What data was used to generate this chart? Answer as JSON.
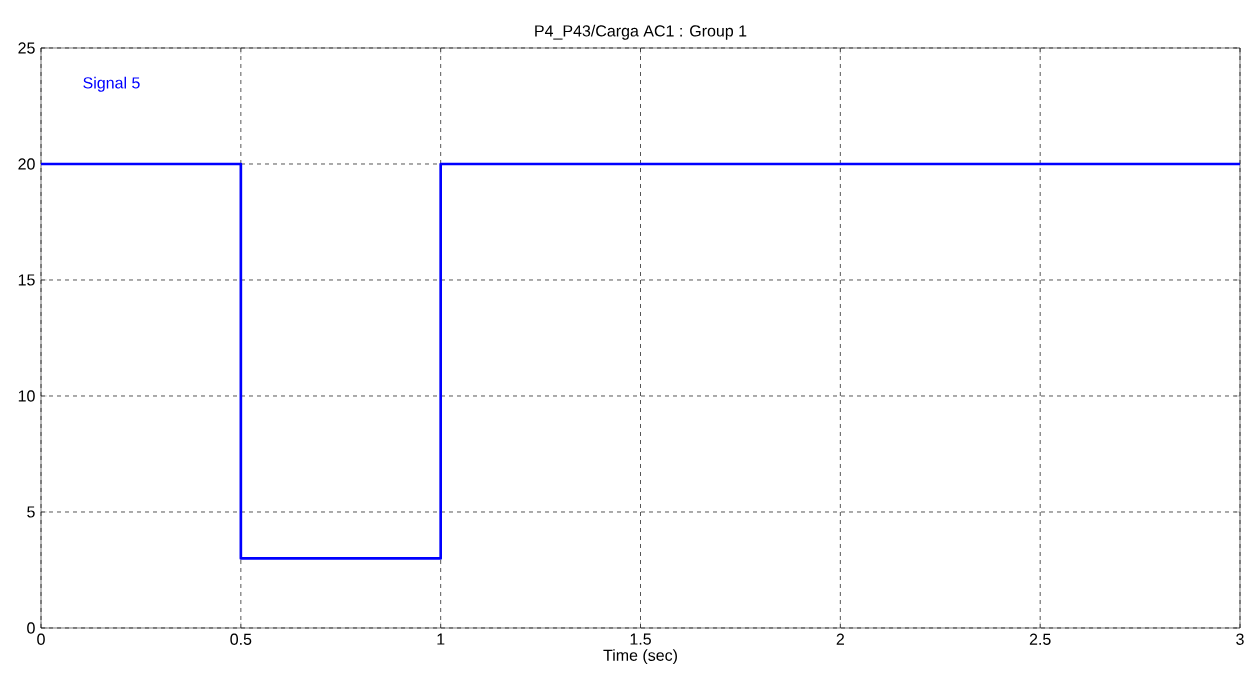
{
  "chart_data": {
    "type": "step",
    "title": "P4_P43/Carga AC1 : Group 1",
    "xlabel": "Time (sec)",
    "x": [
      0,
      0.5,
      1,
      3
    ],
    "series": [
      {
        "name": "Signal 5",
        "color": "#0000ff",
        "values": [
          20,
          3,
          20,
          20
        ]
      }
    ],
    "xlim": [
      0,
      3
    ],
    "xticks": [
      0,
      0.5,
      1,
      1.5,
      2,
      2.5,
      3
    ],
    "ylim": [
      0,
      25
    ],
    "yticks": [
      0,
      5,
      10,
      15,
      20,
      25
    ],
    "grid": true,
    "legend": "top left",
    "line_style": "solid",
    "marker": "none"
  }
}
